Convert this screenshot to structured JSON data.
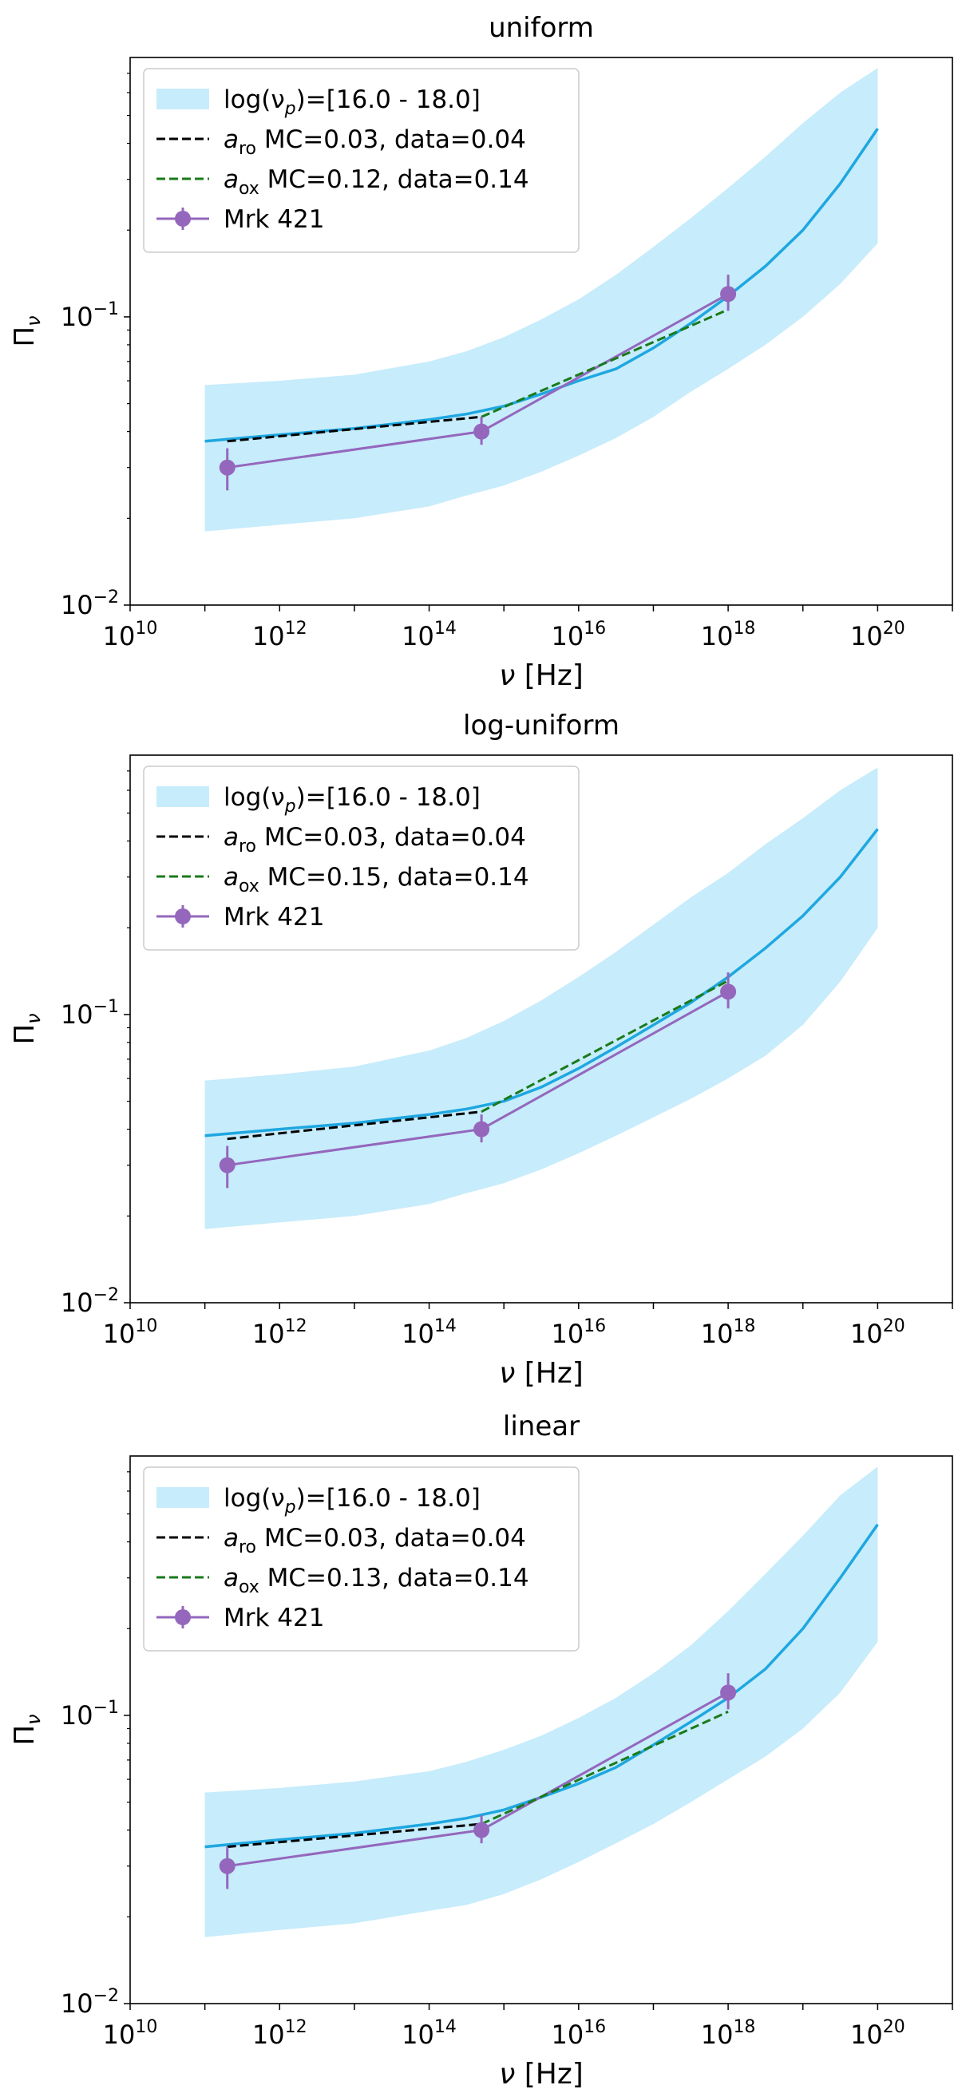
{
  "chart_data": [
    {
      "type": "line",
      "title": "uniform",
      "xlabel": "ν  [Hz]",
      "ylabel": "Πν",
      "xscale": "log",
      "yscale": "log",
      "xlim_exp": [
        10,
        21
      ],
      "ylim_exp": [
        -2,
        -0.1
      ],
      "xtick_exps": [
        10,
        12,
        14,
        16,
        18,
        20
      ],
      "ytick_exps": [
        -2,
        -1
      ],
      "legend": [
        "log(νp)=[16.0 - 18.0]",
        "aro MC=0.03, data=0.04",
        "aox MC=0.12, data=0.14",
        "Mrk 421"
      ],
      "legend_parts": [
        {
          "pre": "log(ν",
          "sub": "p",
          "post": ")=[16.0 - 18.0]"
        },
        {
          "pre": "a",
          "sub": "ro",
          "post": " MC=0.03, data=0.04"
        },
        {
          "pre": "a",
          "sub": "ox",
          "post": " MC=0.12, data=0.14"
        },
        {
          "pre": "Mrk 421",
          "sub": "",
          "post": ""
        }
      ],
      "band": {
        "x": [
          11,
          12,
          13,
          14,
          14.5,
          15,
          15.5,
          16,
          16.5,
          17,
          17.5,
          18,
          18.5,
          19,
          19.5,
          20
        ],
        "upper": [
          0.058,
          0.06,
          0.063,
          0.07,
          0.076,
          0.085,
          0.098,
          0.115,
          0.14,
          0.175,
          0.22,
          0.28,
          0.36,
          0.47,
          0.6,
          0.73
        ],
        "lower": [
          0.018,
          0.019,
          0.02,
          0.022,
          0.024,
          0.026,
          0.029,
          0.033,
          0.038,
          0.045,
          0.055,
          0.066,
          0.08,
          0.1,
          0.13,
          0.18
        ]
      },
      "mc_line": {
        "x": [
          11,
          12,
          13,
          14,
          14.5,
          15,
          15.5,
          16,
          16.5,
          17,
          17.5,
          18,
          18.5,
          19,
          19.5,
          20
        ],
        "y": [
          0.037,
          0.039,
          0.041,
          0.044,
          0.046,
          0.049,
          0.054,
          0.06,
          0.066,
          0.078,
          0.095,
          0.118,
          0.15,
          0.2,
          0.29,
          0.45
        ]
      },
      "aro_line": {
        "x": [
          11.3,
          14.7
        ],
        "y": [
          0.037,
          0.045
        ]
      },
      "aox_line": {
        "x": [
          14.7,
          18.0
        ],
        "y": [
          0.045,
          0.106
        ]
      },
      "mrk421": {
        "x": [
          11.3,
          14.7,
          18.0
        ],
        "y": [
          0.03,
          0.04,
          0.12
        ],
        "yerr_low": [
          0.025,
          0.036,
          0.105
        ],
        "yerr_high": [
          0.035,
          0.045,
          0.14
        ]
      }
    },
    {
      "type": "line",
      "title": "log-uniform",
      "xlabel": "ν  [Hz]",
      "ylabel": "Πν",
      "xscale": "log",
      "yscale": "log",
      "xlim_exp": [
        10,
        21
      ],
      "ylim_exp": [
        -2,
        -0.1
      ],
      "xtick_exps": [
        10,
        12,
        14,
        16,
        18,
        20
      ],
      "ytick_exps": [
        -2,
        -1
      ],
      "legend": [
        "log(νp)=[16.0 - 18.0]",
        "aro MC=0.03, data=0.04",
        "aox MC=0.15, data=0.14",
        "Mrk 421"
      ],
      "legend_parts": [
        {
          "pre": "log(ν",
          "sub": "p",
          "post": ")=[16.0 - 18.0]"
        },
        {
          "pre": "a",
          "sub": "ro",
          "post": " MC=0.03, data=0.04"
        },
        {
          "pre": "a",
          "sub": "ox",
          "post": " MC=0.15, data=0.14"
        },
        {
          "pre": "Mrk 421",
          "sub": "",
          "post": ""
        }
      ],
      "band": {
        "x": [
          11,
          12,
          13,
          14,
          14.5,
          15,
          15.5,
          16,
          16.5,
          17,
          17.5,
          18,
          18.5,
          19,
          19.5,
          20
        ],
        "upper": [
          0.059,
          0.062,
          0.066,
          0.075,
          0.083,
          0.095,
          0.112,
          0.135,
          0.165,
          0.205,
          0.255,
          0.31,
          0.39,
          0.48,
          0.6,
          0.72
        ],
        "lower": [
          0.018,
          0.019,
          0.02,
          0.022,
          0.024,
          0.026,
          0.029,
          0.033,
          0.038,
          0.044,
          0.051,
          0.06,
          0.072,
          0.092,
          0.13,
          0.2
        ]
      },
      "mc_line": {
        "x": [
          11,
          12,
          13,
          14,
          14.5,
          15,
          15.5,
          16,
          16.5,
          17,
          17.5,
          18,
          18.5,
          19,
          19.5,
          20
        ],
        "y": [
          0.038,
          0.04,
          0.042,
          0.045,
          0.047,
          0.05,
          0.056,
          0.065,
          0.077,
          0.092,
          0.11,
          0.135,
          0.17,
          0.22,
          0.3,
          0.44
        ]
      },
      "aro_line": {
        "x": [
          11.3,
          14.7
        ],
        "y": [
          0.037,
          0.046
        ]
      },
      "aox_line": {
        "x": [
          14.7,
          18.0
        ],
        "y": [
          0.046,
          0.131
        ]
      },
      "mrk421": {
        "x": [
          11.3,
          14.7,
          18.0
        ],
        "y": [
          0.03,
          0.04,
          0.12
        ],
        "yerr_low": [
          0.025,
          0.036,
          0.105
        ],
        "yerr_high": [
          0.035,
          0.045,
          0.14
        ]
      }
    },
    {
      "type": "line",
      "title": "linear",
      "xlabel": "ν  [Hz]",
      "ylabel": "Πν",
      "xscale": "log",
      "yscale": "log",
      "xlim_exp": [
        10,
        21
      ],
      "ylim_exp": [
        -2,
        -0.1
      ],
      "xtick_exps": [
        10,
        12,
        14,
        16,
        18,
        20
      ],
      "ytick_exps": [
        -2,
        -1
      ],
      "legend": [
        "log(νp)=[16.0 - 18.0]",
        "aro MC=0.03, data=0.04",
        "aox MC=0.13, data=0.14",
        "Mrk 421"
      ],
      "legend_parts": [
        {
          "pre": "log(ν",
          "sub": "p",
          "post": ")=[16.0 - 18.0]"
        },
        {
          "pre": "a",
          "sub": "ro",
          "post": " MC=0.03, data=0.04"
        },
        {
          "pre": "a",
          "sub": "ox",
          "post": " MC=0.13, data=0.14"
        },
        {
          "pre": "Mrk 421",
          "sub": "",
          "post": ""
        }
      ],
      "band": {
        "x": [
          11,
          12,
          13,
          14,
          14.5,
          15,
          15.5,
          16,
          16.5,
          17,
          17.5,
          18,
          18.5,
          19,
          19.5,
          20
        ],
        "upper": [
          0.054,
          0.056,
          0.059,
          0.064,
          0.069,
          0.076,
          0.085,
          0.098,
          0.115,
          0.14,
          0.175,
          0.23,
          0.31,
          0.42,
          0.58,
          0.73
        ],
        "lower": [
          0.017,
          0.018,
          0.019,
          0.021,
          0.022,
          0.024,
          0.027,
          0.031,
          0.036,
          0.042,
          0.05,
          0.06,
          0.072,
          0.09,
          0.12,
          0.18
        ]
      },
      "mc_line": {
        "x": [
          11,
          12,
          13,
          14,
          14.5,
          15,
          15.5,
          16,
          16.5,
          17,
          17.5,
          18,
          18.5,
          19,
          19.5,
          20
        ],
        "y": [
          0.035,
          0.037,
          0.039,
          0.042,
          0.044,
          0.047,
          0.052,
          0.058,
          0.066,
          0.079,
          0.095,
          0.115,
          0.145,
          0.2,
          0.3,
          0.46
        ]
      },
      "aro_line": {
        "x": [
          11.3,
          14.7
        ],
        "y": [
          0.035,
          0.042
        ]
      },
      "aox_line": {
        "x": [
          14.7,
          18.0
        ],
        "y": [
          0.042,
          0.103
        ]
      },
      "mrk421": {
        "x": [
          11.3,
          14.7,
          18.0
        ],
        "y": [
          0.03,
          0.04,
          0.12
        ],
        "yerr_low": [
          0.025,
          0.036,
          0.105
        ],
        "yerr_high": [
          0.035,
          0.045,
          0.14
        ]
      }
    }
  ],
  "colors": {
    "band": "#c7ecfb",
    "mc_line": "#1ea7e0",
    "aro": "#000000",
    "aox": "#1a7a1a",
    "mrk": "#9467bd"
  }
}
